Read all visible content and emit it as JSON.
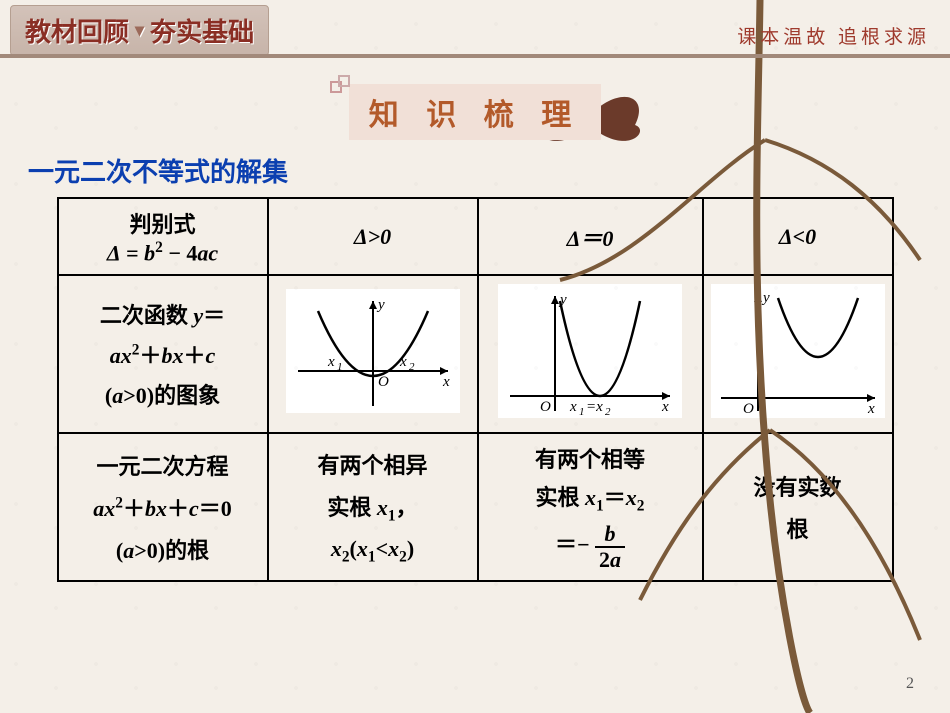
{
  "header": {
    "left1": "教材回顾",
    "left2": "夯实基础",
    "right": "课本温故  追根求源"
  },
  "section_title": "知 识 梳 理",
  "sub_title": "一元二次不等式的解集",
  "table": {
    "row0": {
      "c0_line1": "判别式",
      "c0_line2_html": "<i>Δ</i> = <i>b</i><sup>2</sup> − 4<i>ac</i>",
      "c1": "Δ>0",
      "c2": "Δ＝0",
      "c3": "Δ<0"
    },
    "row1": {
      "c0_line1_html": "二次函数 <i>y</i>＝",
      "c0_line2_html": "<i>ax</i><sup>2</sup>＋<i>bx</i>＋<i>c</i>",
      "c0_line3_html": "(<i>a</i>&gt;0)的图象"
    },
    "row2": {
      "c0_line1_html": "一元二次方程",
      "c0_line2_html": "<i>ax</i><sup>2</sup>＋<i>bx</i>＋<i>c</i>＝0",
      "c0_line3_html": "(<i>a</i>&gt;0)的根",
      "c1_line1": "有两个相异",
      "c1_line2_html": "实根 <i>x</i><sub>1</sub>，",
      "c1_line3_html": "<i>x</i><sub>2</sub>(<i>x</i><sub>1</sub>&lt;<i>x</i><sub>2</sub>)",
      "c2_line1": "有两个相等",
      "c2_line2_html": "实根 <i>x</i><sub>1</sub>＝<i>x</i><sub>2</sub>",
      "c2_frac_prefix": "＝−",
      "c2_frac_num": "b",
      "c2_frac_den": "2a",
      "c3_line1": "没有实数",
      "c3_line2": "根"
    }
  },
  "graphs": {
    "bg": "#ffffff",
    "axis_color": "#000000",
    "curve_color": "#000000",
    "labels": {
      "y": "y",
      "x": "x",
      "O": "O",
      "x1": "x₁",
      "x2": "x₂",
      "eq": "x₁=x₂"
    }
  },
  "page_number": "2",
  "colors": {
    "bg": "#f4efe8",
    "header_box_bg": "#c7b4a9",
    "header_text": "#8a2e24",
    "subtitle": "#9f3a2d",
    "section_chip_bg": "#f1e0d7",
    "section_chip_text": "#b35a2a",
    "subtitle_blue": "#0b3fb0",
    "border": "#000000"
  }
}
